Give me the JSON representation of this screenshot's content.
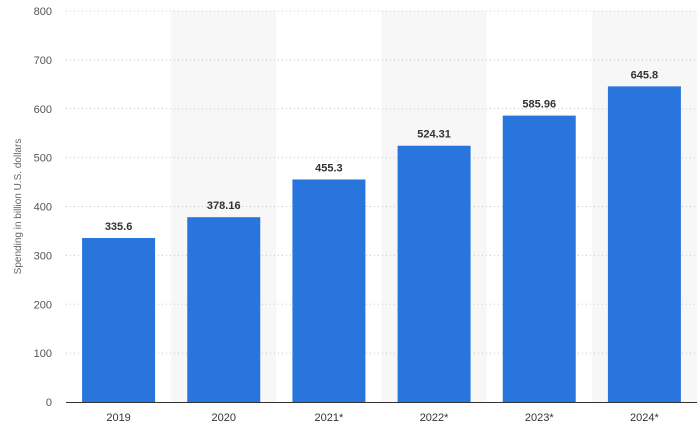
{
  "chart_data": {
    "type": "bar",
    "categories": [
      "2019",
      "2020",
      "2021*",
      "2022*",
      "2023*",
      "2024*"
    ],
    "values": [
      335.6,
      378.16,
      455.3,
      524.31,
      585.96,
      645.8
    ],
    "data_labels": [
      "335.6",
      "378.16",
      "455.3",
      "524.31",
      "585.96",
      "645.8"
    ],
    "title": "",
    "xlabel": "",
    "ylabel": "Spending in billion U.S. dollars",
    "ylim": [
      0,
      800
    ],
    "yticks": [
      0,
      100,
      200,
      300,
      400,
      500,
      600,
      700,
      800
    ],
    "grid": true,
    "bar_color": "#2876dd",
    "band_color": "#f7f7f7"
  }
}
